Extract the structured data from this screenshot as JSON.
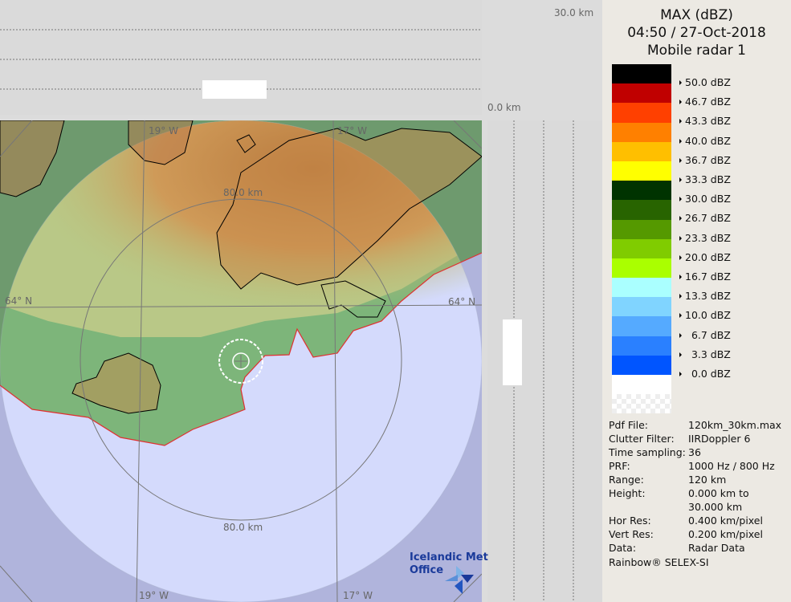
{
  "header": {
    "product": "MAX (dBZ)",
    "datetime": "04:50 / 27-Oct-2018",
    "radar": "Mobile radar 1"
  },
  "legend": [
    {
      "color": "#000000",
      "label": "50.0 dBZ"
    },
    {
      "color": "#c00000",
      "label": "46.7 dBZ"
    },
    {
      "color": "#ff4000",
      "label": "43.3 dBZ"
    },
    {
      "color": "#ff8000",
      "label": "40.0 dBZ"
    },
    {
      "color": "#ffbf00",
      "label": "36.7 dBZ"
    },
    {
      "color": "#ffff00",
      "label": "33.3 dBZ"
    },
    {
      "color": "#003300",
      "label": "30.0 dBZ"
    },
    {
      "color": "#286400",
      "label": "26.7 dBZ"
    },
    {
      "color": "#559900",
      "label": "23.3 dBZ"
    },
    {
      "color": "#80cc00",
      "label": "20.0 dBZ"
    },
    {
      "color": "#aaff00",
      "label": "16.7 dBZ"
    },
    {
      "color": "#aaffff",
      "label": "13.3 dBZ"
    },
    {
      "color": "#80d4ff",
      "label": "10.0 dBZ"
    },
    {
      "color": "#55aaff",
      "label": "  6.7 dBZ"
    },
    {
      "color": "#2a80ff",
      "label": "  3.3 dBZ"
    },
    {
      "color": "#0055ff",
      "label": "  0.0 dBZ"
    },
    {
      "color": "#ffffff",
      "label": ""
    }
  ],
  "info": [
    {
      "key": "Pdf File:",
      "value": "120km_30km.max"
    },
    {
      "key": "Clutter Filter:",
      "value": "IIRDoppler 6"
    },
    {
      "key": "Time sampling:",
      "value": "36"
    },
    {
      "key": "PRF:",
      "value": "1000 Hz / 800 Hz"
    },
    {
      "key": "Range:",
      "value": "120 km"
    },
    {
      "key": "Height:",
      "value": "0.000 km to"
    },
    {
      "key": "",
      "value": "30.000 km"
    },
    {
      "key": "Hor Res:",
      "value": "0.400 km/pixel"
    },
    {
      "key": "Vert Res:",
      "value": "0.200 km/pixel"
    },
    {
      "key": "Data:",
      "value": "Radar Data"
    }
  ],
  "footer": "Rainbow® SELEX-SI",
  "map": {
    "ring_label_top": "80.0 km",
    "ring_label_bottom": "80.0 km",
    "lat_label_left": "64° N",
    "lat_label_right": "64° N",
    "lon_label_19_top": "19° W",
    "lon_label_17_top": "17° W",
    "lon_label_19_bottom": "19° W",
    "lon_label_17_bottom": "17° W",
    "xsec_top": "30.0 km",
    "xsec_bottom": "0.0 km",
    "logo_line1": "Icelandic Met",
    "logo_line2": "Office"
  }
}
